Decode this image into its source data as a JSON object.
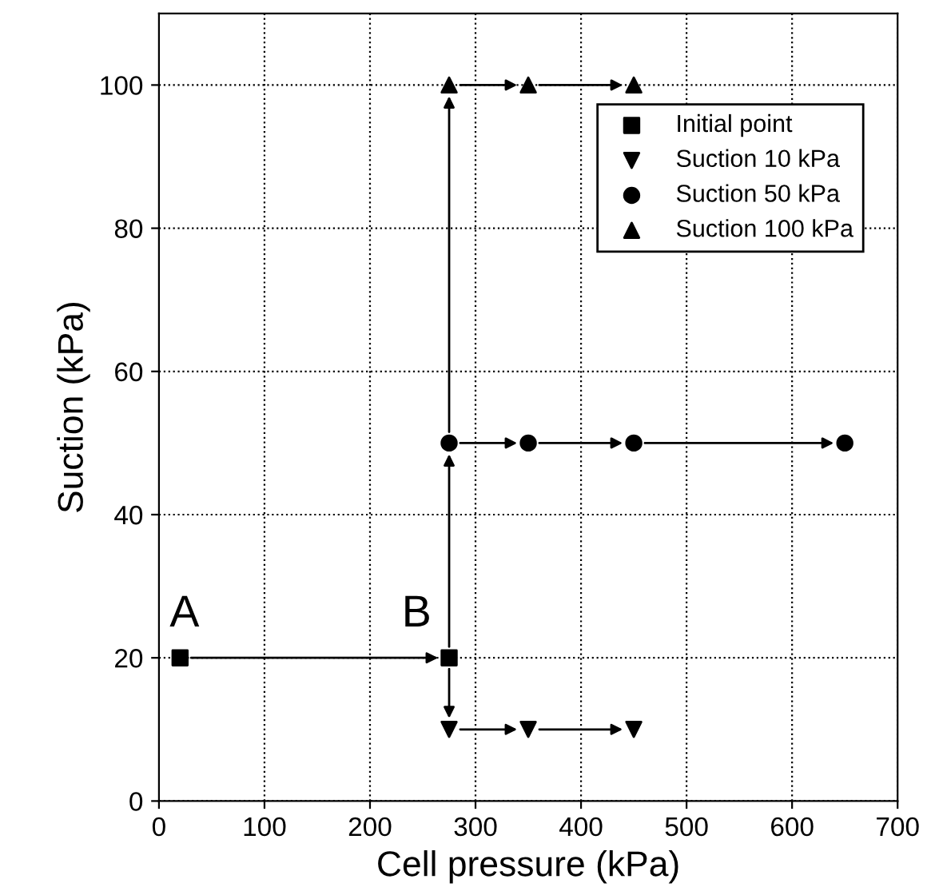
{
  "chart_data": {
    "type": "scatter",
    "xlabel": "Cell pressure (kPa)",
    "ylabel": "Suction (kPa)",
    "xlim": [
      0,
      700
    ],
    "ylim": [
      0,
      110
    ],
    "xticks": [
      0,
      100,
      200,
      300,
      400,
      500,
      600,
      700
    ],
    "yticks": [
      0,
      20,
      40,
      60,
      80,
      100
    ],
    "grid": true,
    "legend": "top right",
    "annotations": [
      {
        "text": "A",
        "x": 20,
        "y": 20
      },
      {
        "text": "B",
        "x": 275,
        "y": 20
      }
    ],
    "series": [
      {
        "name": "Initial point",
        "color": "#000000",
        "marker": "square",
        "x": [
          20,
          275
        ],
        "values": [
          20,
          20
        ]
      },
      {
        "name": "Suction 10 kPa",
        "color": "#000000",
        "marker": "triangle_down",
        "x": [
          275,
          350,
          450
        ],
        "values": [
          10,
          10,
          10
        ]
      },
      {
        "name": "Suction 50 kPa",
        "color": "#000000",
        "marker": "circle",
        "x": [
          275,
          350,
          450,
          650
        ],
        "values": [
          50,
          50,
          50,
          50
        ]
      },
      {
        "name": "Suction 100 kPa",
        "color": "#000000",
        "marker": "triangle",
        "x": [
          275,
          350,
          450
        ],
        "values": [
          100,
          100,
          100
        ]
      }
    ]
  }
}
